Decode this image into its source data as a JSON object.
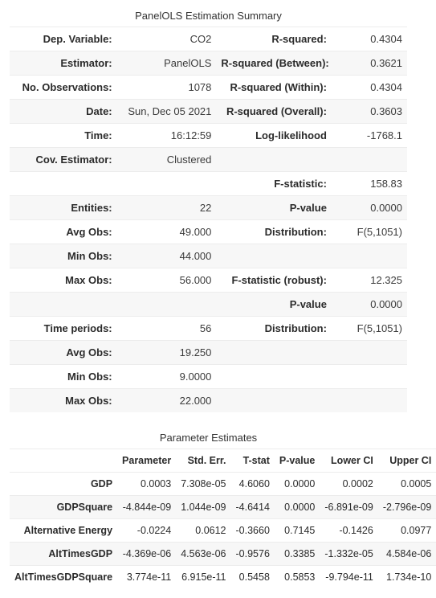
{
  "summary": {
    "title": "PanelOLS Estimation Summary",
    "rows": [
      {
        "l1": "Dep. Variable:",
        "v1": "CO2",
        "l2": "R-squared:",
        "v2": "0.4304"
      },
      {
        "l1": "Estimator:",
        "v1": "PanelOLS",
        "l2": "R-squared (Between):",
        "v2": "0.3621"
      },
      {
        "l1": "No. Observations:",
        "v1": "1078",
        "l2": "R-squared (Within):",
        "v2": "0.4304"
      },
      {
        "l1": "Date:",
        "v1": "Sun, Dec 05 2021",
        "l2": "R-squared (Overall):",
        "v2": "0.3603"
      },
      {
        "l1": "Time:",
        "v1": "16:12:59",
        "l2": "Log-likelihood",
        "v2": "-1768.1"
      },
      {
        "l1": "Cov. Estimator:",
        "v1": "Clustered",
        "l2": "",
        "v2": ""
      },
      {
        "l1": "",
        "v1": "",
        "l2": "F-statistic:",
        "v2": "158.83"
      },
      {
        "l1": "Entities:",
        "v1": "22",
        "l2": "P-value",
        "v2": "0.0000"
      },
      {
        "l1": "Avg Obs:",
        "v1": "49.000",
        "l2": "Distribution:",
        "v2": "F(5,1051)"
      },
      {
        "l1": "Min Obs:",
        "v1": "44.000",
        "l2": "",
        "v2": ""
      },
      {
        "l1": "Max Obs:",
        "v1": "56.000",
        "l2": "F-statistic (robust):",
        "v2": "12.325"
      },
      {
        "l1": "",
        "v1": "",
        "l2": "P-value",
        "v2": "0.0000"
      },
      {
        "l1": "Time periods:",
        "v1": "56",
        "l2": "Distribution:",
        "v2": "F(5,1051)"
      },
      {
        "l1": "Avg Obs:",
        "v1": "19.250",
        "l2": "",
        "v2": ""
      },
      {
        "l1": "Min Obs:",
        "v1": "9.0000",
        "l2": "",
        "v2": ""
      },
      {
        "l1": "Max Obs:",
        "v1": "22.000",
        "l2": "",
        "v2": ""
      }
    ]
  },
  "params": {
    "title": "Parameter Estimates",
    "columns": [
      "",
      "Parameter",
      "Std. Err.",
      "T-stat",
      "P-value",
      "Lower CI",
      "Upper CI"
    ],
    "rows": [
      {
        "name": "GDP",
        "c": [
          "0.0003",
          "7.308e-05",
          "4.6060",
          "0.0000",
          "0.0002",
          "0.0005"
        ]
      },
      {
        "name": "GDPSquare",
        "c": [
          "-4.844e-09",
          "1.044e-09",
          "-4.6414",
          "0.0000",
          "-6.891e-09",
          "-2.796e-09"
        ]
      },
      {
        "name": "Alternative Energy",
        "c": [
          "-0.0224",
          "0.0612",
          "-0.3660",
          "0.7145",
          "-0.1426",
          "0.0977"
        ]
      },
      {
        "name": "AltTimesGDP",
        "c": [
          "-4.369e-06",
          "4.563e-06",
          "-0.9576",
          "0.3385",
          "-1.332e-05",
          "4.584e-06"
        ]
      },
      {
        "name": "AltTimesGDPSquare",
        "c": [
          "3.774e-11",
          "6.915e-11",
          "0.5458",
          "0.5853",
          "-9.794e-11",
          "1.734e-10"
        ]
      }
    ]
  },
  "colwidths": {
    "summary": [
      "27%",
      "25%",
      "29%",
      "19%"
    ]
  }
}
